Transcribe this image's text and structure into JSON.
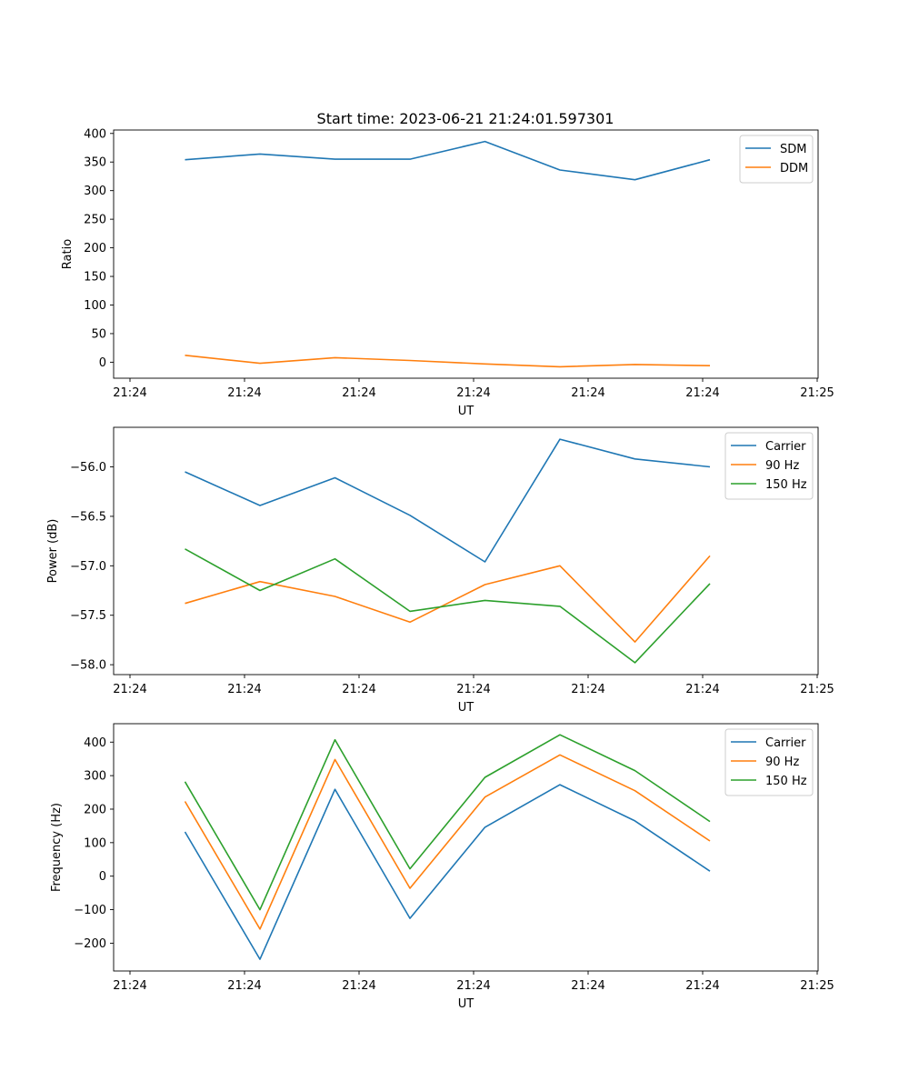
{
  "title": "Start time: 2023-06-21 21:24:01.597301",
  "colors": {
    "blue": "#1f77b4",
    "orange": "#ff7f0e",
    "green": "#2ca02c"
  },
  "chart_data": [
    {
      "type": "line",
      "xlabel": "UT",
      "ylabel": "Ratio",
      "x_tick_labels": [
        "21:24",
        "21:24",
        "21:24",
        "21:24",
        "21:24",
        "21:24",
        "21:25"
      ],
      "y_ticks": [
        0,
        50,
        100,
        150,
        200,
        250,
        300,
        350,
        400
      ],
      "y_tick_labels": [
        "0",
        "50",
        "100",
        "150",
        "200",
        "250",
        "300",
        "350",
        "400"
      ],
      "ylim": [
        -28,
        406
      ],
      "legend_position": "top-right",
      "grid": false,
      "series": [
        {
          "name": "SDM",
          "color": "#1f77b4",
          "values": [
            354,
            364,
            355,
            355,
            386,
            336,
            319,
            354
          ]
        },
        {
          "name": "DDM",
          "color": "#ff7f0e",
          "values": [
            12,
            -2,
            8,
            3,
            -3,
            -8,
            -4,
            -6
          ]
        }
      ]
    },
    {
      "type": "line",
      "xlabel": "UT",
      "ylabel": "Power (dB)",
      "x_tick_labels": [
        "21:24",
        "21:24",
        "21:24",
        "21:24",
        "21:24",
        "21:24",
        "21:25"
      ],
      "y_ticks": [
        -58.0,
        -57.5,
        -57.0,
        -56.5,
        -56.0
      ],
      "y_tick_labels": [
        "−58.0",
        "−57.5",
        "−57.0",
        "−56.5",
        "−56.0"
      ],
      "ylim": [
        -58.1,
        -55.6
      ],
      "legend_position": "top-right",
      "grid": false,
      "series": [
        {
          "name": "Carrier",
          "color": "#1f77b4",
          "values": [
            -56.05,
            -56.39,
            -56.11,
            -56.49,
            -56.96,
            -55.72,
            -55.92,
            -56.0
          ]
        },
        {
          "name": "90 Hz",
          "color": "#ff7f0e",
          "values": [
            -57.38,
            -57.16,
            -57.31,
            -57.57,
            -57.19,
            -57.0,
            -57.77,
            -56.9
          ]
        },
        {
          "name": "150 Hz",
          "color": "#2ca02c",
          "values": [
            -56.83,
            -57.25,
            -56.93,
            -57.46,
            -57.35,
            -57.41,
            -57.98,
            -57.18
          ]
        }
      ]
    },
    {
      "type": "line",
      "xlabel": "UT",
      "ylabel": "Frequency (Hz)",
      "x_tick_labels": [
        "21:24",
        "21:24",
        "21:24",
        "21:24",
        "21:24",
        "21:24",
        "21:25"
      ],
      "y_ticks": [
        -200,
        -100,
        0,
        100,
        200,
        300,
        400
      ],
      "y_tick_labels": [
        "−200",
        "−100",
        "0",
        "100",
        "200",
        "300",
        "400"
      ],
      "ylim": [
        -283,
        455
      ],
      "legend_position": "top-right",
      "grid": false,
      "series": [
        {
          "name": "Carrier",
          "color": "#1f77b4",
          "values": [
            132,
            -248,
            259,
            -126,
            146,
            273,
            165,
            15
          ]
        },
        {
          "name": "90 Hz",
          "color": "#ff7f0e",
          "values": [
            223,
            -158,
            348,
            -36,
            236,
            362,
            255,
            105
          ]
        },
        {
          "name": "150 Hz",
          "color": "#2ca02c",
          "values": [
            282,
            -100,
            407,
            22,
            295,
            422,
            315,
            163
          ]
        }
      ]
    }
  ]
}
